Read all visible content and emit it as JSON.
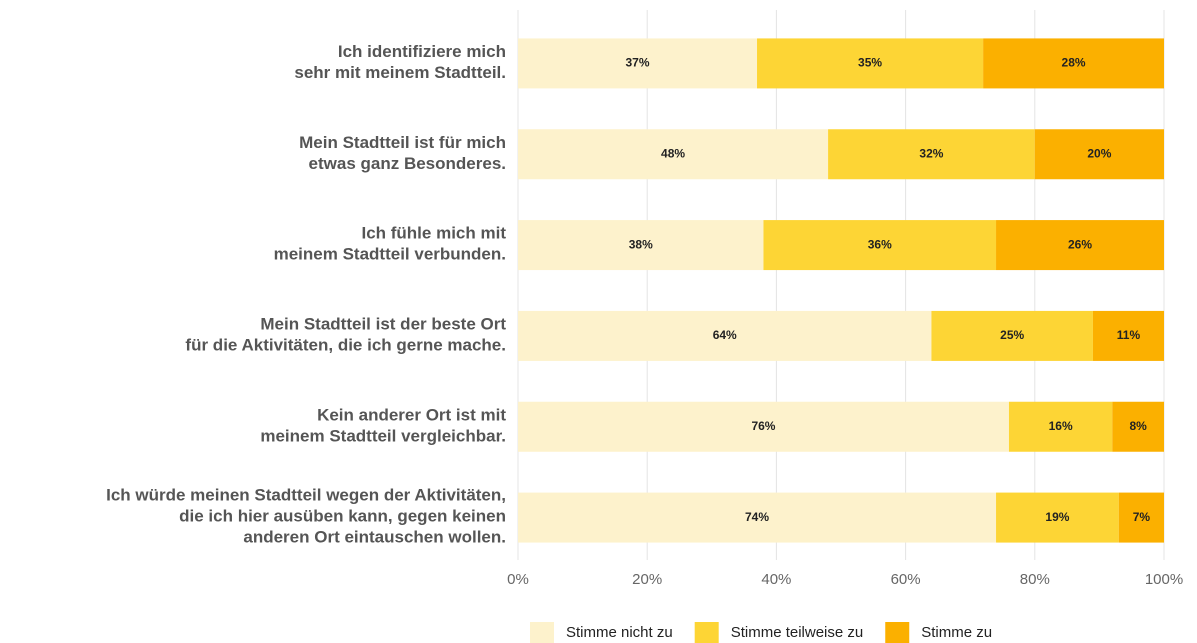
{
  "chart_data": {
    "type": "stacked_barh",
    "categories": [
      "Ich identifiziere mich\nsehr mit meinem Stadtteil.",
      "Mein Stadtteil ist für mich\netwas ganz Besonderes.",
      "Ich fühle mich mit\nmeinem Stadtteil verbunden.",
      "Mein Stadtteil ist der beste Ort\nfür die Aktivitäten, die ich gerne mache.",
      "Kein anderer Ort ist mit\nmeinem Stadtteil vergleichbar.",
      "Ich würde meinen Stadtteil wegen der Aktivitäten,\ndie ich hier ausüben kann, gegen keinen\nanderen Ort eintauschen wollen."
    ],
    "series": [
      {
        "name": "Stimme nicht zu",
        "color": "#fdf2cc",
        "values": [
          37,
          48,
          38,
          64,
          76,
          74
        ],
        "value_labels": [
          "37%",
          "48%",
          "38%",
          "64%",
          "76%",
          "74%"
        ]
      },
      {
        "name": "Stimme teilweise zu",
        "color": "#fdd535",
        "values": [
          35,
          32,
          36,
          25,
          16,
          19
        ],
        "value_labels": [
          "35%",
          "32%",
          "36%",
          "25%",
          "16%",
          "19%"
        ]
      },
      {
        "name": "Stimme zu",
        "color": "#fbb000",
        "values": [
          28,
          20,
          26,
          11,
          8,
          7
        ],
        "value_labels": [
          "28%",
          "20%",
          "26%",
          "11%",
          "8%",
          "7%"
        ]
      }
    ],
    "xlim": [
      0,
      100
    ],
    "xticks": [
      {
        "value": 0,
        "label": "0%"
      },
      {
        "value": 20,
        "label": "20%"
      },
      {
        "value": 40,
        "label": "40%"
      },
      {
        "value": 60,
        "label": "60%"
      },
      {
        "value": 80,
        "label": "80%"
      },
      {
        "value": 100,
        "label": "100%"
      }
    ],
    "grid": true,
    "legend": "bottom"
  }
}
